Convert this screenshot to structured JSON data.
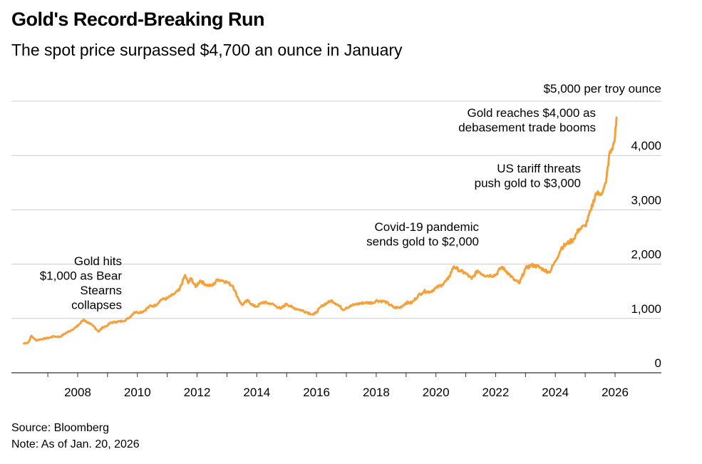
{
  "header": {
    "title": "Gold's Record-Breaking Run",
    "subtitle": "The spot price surpassed $4,700 an ounce in January"
  },
  "footer": {
    "source": "Source: Bloomberg",
    "note": "Note: As of Jan. 20, 2026"
  },
  "colors": {
    "line": "#F5A038",
    "grid": "#cccccc",
    "axis": "#333333",
    "text": "#000000"
  },
  "chart_data": {
    "type": "line",
    "title": "Gold's Record-Breaking Run",
    "subtitle": "The spot price surpassed $4,700 an ounce in January",
    "xlabel": "",
    "ylabel": "$ per troy ounce",
    "unit_label": "$5,000 per troy ounce",
    "xlim": [
      2006.2,
      2026.9
    ],
    "ylim": [
      0,
      5000
    ],
    "grid": true,
    "y_ticks": [
      0,
      1000,
      2000,
      3000,
      4000,
      5000
    ],
    "y_tick_labels": [
      "0",
      "1,000",
      "2,000",
      "3,000",
      "4,000",
      ""
    ],
    "x_ticks": [
      2008,
      2010,
      2012,
      2014,
      2016,
      2018,
      2020,
      2022,
      2024,
      2026
    ],
    "x_tick_labels": [
      "2008",
      "2010",
      "2012",
      "2014",
      "2016",
      "2018",
      "2020",
      "2022",
      "2024",
      "2026"
    ],
    "series": [
      {
        "name": "Gold spot price",
        "x": [
          2006.2,
          2006.35,
          2006.45,
          2006.6,
          2006.8,
          2007.0,
          2007.2,
          2007.4,
          2007.6,
          2007.8,
          2007.95,
          2008.1,
          2008.2,
          2008.4,
          2008.55,
          2008.7,
          2008.85,
          2009.0,
          2009.1,
          2009.3,
          2009.5,
          2009.7,
          2009.9,
          2010.0,
          2010.2,
          2010.4,
          2010.6,
          2010.8,
          2011.0,
          2011.2,
          2011.4,
          2011.6,
          2011.7,
          2011.8,
          2011.95,
          2012.1,
          2012.3,
          2012.5,
          2012.7,
          2012.85,
          2013.0,
          2013.2,
          2013.35,
          2013.5,
          2013.7,
          2013.9,
          2014.0,
          2014.2,
          2014.5,
          2014.8,
          2015.0,
          2015.2,
          2015.5,
          2015.7,
          2015.9,
          2016.0,
          2016.2,
          2016.5,
          2016.7,
          2016.9,
          2017.0,
          2017.3,
          2017.6,
          2017.9,
          2018.0,
          2018.3,
          2018.6,
          2018.8,
          2019.0,
          2019.2,
          2019.4,
          2019.6,
          2019.8,
          2020.0,
          2020.2,
          2020.4,
          2020.6,
          2020.8,
          2021.0,
          2021.2,
          2021.4,
          2021.6,
          2021.8,
          2022.0,
          2022.2,
          2022.4,
          2022.6,
          2022.8,
          2023.0,
          2023.2,
          2023.4,
          2023.6,
          2023.8,
          2024.0,
          2024.2,
          2024.4,
          2024.6,
          2024.8,
          2025.0,
          2025.2,
          2025.35,
          2025.5,
          2025.6,
          2025.7,
          2025.8,
          2025.9,
          2026.0,
          2026.05
        ],
        "values": [
          540,
          560,
          680,
          600,
          620,
          640,
          670,
          660,
          730,
          790,
          840,
          920,
          980,
          900,
          850,
          760,
          840,
          870,
          920,
          940,
          950,
          1000,
          1120,
          1110,
          1130,
          1220,
          1240,
          1350,
          1370,
          1440,
          1520,
          1800,
          1650,
          1740,
          1580,
          1700,
          1620,
          1600,
          1720,
          1700,
          1670,
          1600,
          1400,
          1250,
          1330,
          1230,
          1220,
          1300,
          1270,
          1180,
          1270,
          1200,
          1150,
          1110,
          1070,
          1120,
          1240,
          1330,
          1260,
          1160,
          1200,
          1260,
          1290,
          1290,
          1330,
          1310,
          1200,
          1200,
          1290,
          1290,
          1420,
          1500,
          1490,
          1560,
          1620,
          1720,
          1960,
          1880,
          1830,
          1730,
          1880,
          1800,
          1790,
          1800,
          1950,
          1850,
          1720,
          1650,
          1920,
          1980,
          1960,
          1900,
          1850,
          2050,
          2300,
          2380,
          2450,
          2650,
          2700,
          3000,
          3300,
          3300,
          3350,
          3500,
          4000,
          4100,
          4350,
          4700
        ]
      }
    ],
    "annotations": [
      {
        "lines": [
          "Gold hits",
          "$1,000 as Bear",
          "Stearns",
          "collapses"
        ],
        "x": 2008.2,
        "y": 990
      },
      {
        "lines": [
          "Covid-19 pandemic",
          "sends gold to $2,000"
        ],
        "x": 2020.6,
        "y": 2010
      },
      {
        "lines": [
          "US tariff threats",
          "push gold to $3,000"
        ],
        "x": 2025.2,
        "y": 3000
      },
      {
        "lines": [
          "Gold reaches $4,000 as",
          "debasement trade booms"
        ],
        "x": 2025.8,
        "y": 4000
      }
    ]
  }
}
